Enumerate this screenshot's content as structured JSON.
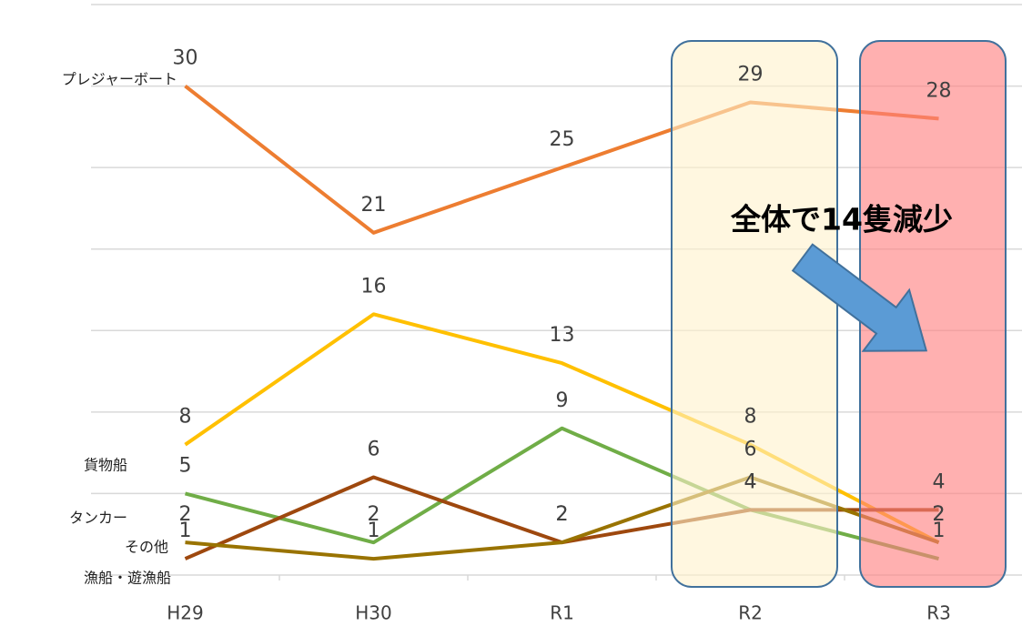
{
  "chart_data": {
    "type": "line",
    "categories": [
      "H29",
      "H30",
      "R1",
      "R2",
      "R3"
    ],
    "series": [
      {
        "name": "プレジャーボート",
        "color": "#ED7D31",
        "values": [
          30,
          21,
          25,
          29,
          28
        ]
      },
      {
        "name": "漁船・遊漁船",
        "color": "#FFC000",
        "values": [
          8,
          16,
          13,
          8,
          2
        ]
      },
      {
        "name": "貨物船",
        "color": "#70AD47",
        "values": [
          5,
          2,
          9,
          4,
          1
        ]
      },
      {
        "name": "その他",
        "color": "#9E480E",
        "values": [
          1,
          6,
          2,
          4,
          4
        ]
      },
      {
        "name": "タンカー",
        "color": "#997300",
        "values": [
          2,
          1,
          2,
          6,
          2
        ]
      }
    ],
    "ylim": [
      0,
      35
    ],
    "yticks": [
      0,
      5,
      10,
      15,
      20,
      25,
      30,
      35
    ],
    "grid": true,
    "annotation": "全体で14隻減少"
  }
}
